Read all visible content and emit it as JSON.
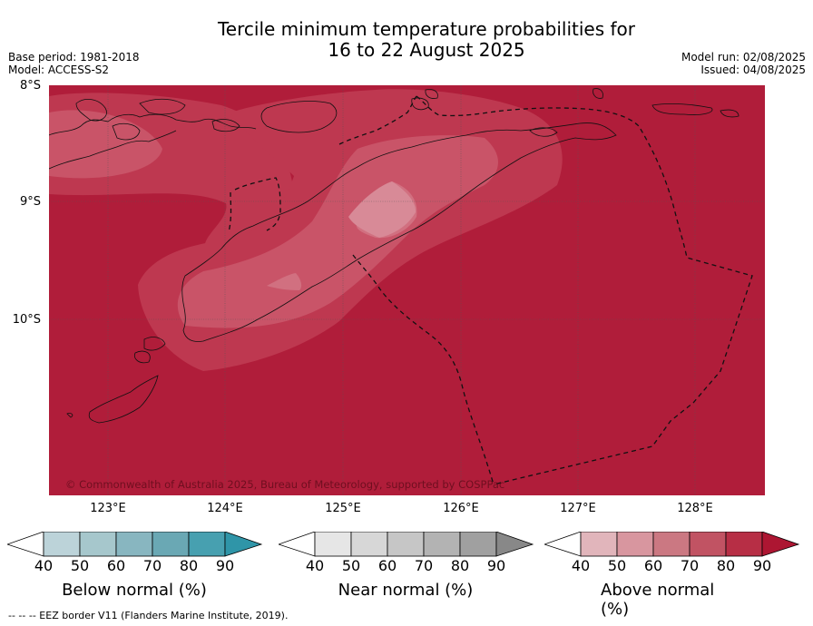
{
  "title": {
    "line1": "Tercile minimum temperature probabilities for",
    "line2": "16 to 22 August 2025"
  },
  "meta_left": {
    "base_period": "Base period: 1981-2018",
    "model": "Model: ACCESS-S2"
  },
  "meta_right": {
    "model_run": "Model run: 02/08/2025",
    "issued": "Issued: 04/08/2025"
  },
  "lat_labels": [
    "8°S",
    "9°S",
    "10°S"
  ],
  "lon_labels": [
    "123°E",
    "124°E",
    "125°E",
    "126°E",
    "127°E",
    "128°E"
  ],
  "copyright": "© Commonwealth of Australia 2025, Bureau of Meteorology, supported by COSPPac",
  "colorbars": [
    {
      "label": "Below normal (%)",
      "ticks": [
        "40",
        "50",
        "60",
        "70",
        "80",
        "90"
      ],
      "colors": [
        "#ffffff",
        "#bcd3d9",
        "#a6c7cc",
        "#88b6c0",
        "#6aa8b4",
        "#47a0b0",
        "#2f95a8"
      ]
    },
    {
      "label": "Near normal (%)",
      "ticks": [
        "40",
        "50",
        "60",
        "70",
        "80",
        "90"
      ],
      "colors": [
        "#ffffff",
        "#e6e6e6",
        "#d7d7d7",
        "#c6c6c6",
        "#b3b3b3",
        "#a0a0a0",
        "#888888"
      ]
    },
    {
      "label": "Above normal (%)",
      "ticks": [
        "40",
        "50",
        "60",
        "70",
        "80",
        "90"
      ],
      "colors": [
        "#ffffff",
        "#e1b5bb",
        "#d8969f",
        "#cb7882",
        "#c15363",
        "#b72e45",
        "#ad1632"
      ]
    }
  ],
  "footer": "--  --  -- EEZ border V11 (Flanders Marine Institute, 2019).",
  "map_colors": {
    "ocean": "#b01d3a",
    "level1": "#be3850",
    "level2": "#c95468",
    "level3": "#d17080",
    "level4": "#d88a97"
  }
}
